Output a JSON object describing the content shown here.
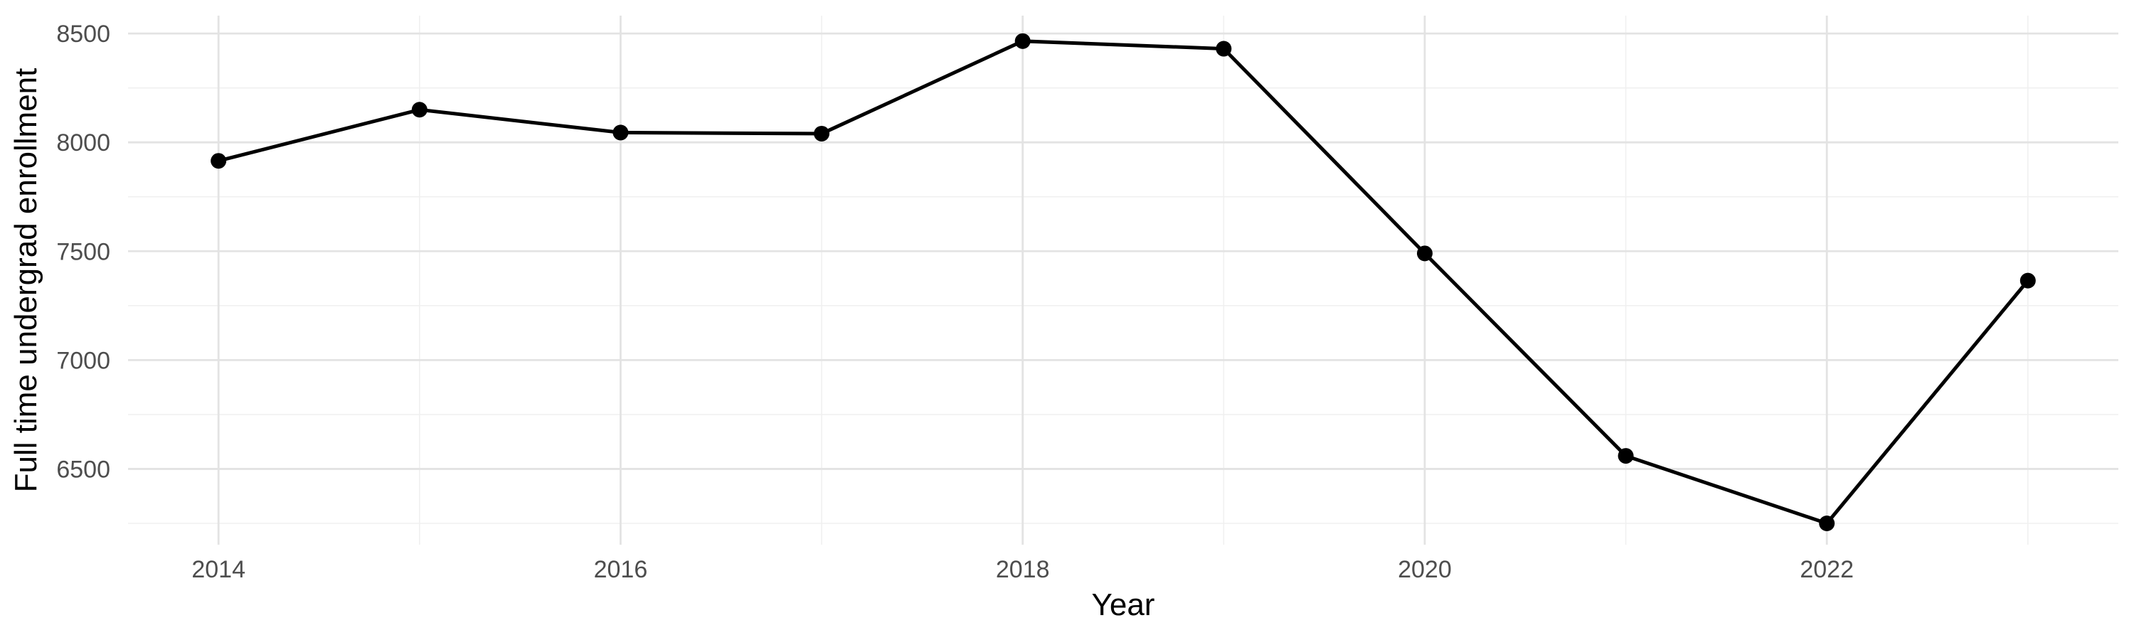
{
  "chart_data": {
    "type": "line",
    "title": "",
    "xlabel": "Year",
    "ylabel": "Full time undergrad enrollment",
    "series": [
      {
        "name": "Full time undergrad enrollment",
        "x": [
          2014,
          2015,
          2016,
          2017,
          2018,
          2019,
          2020,
          2021,
          2022,
          2023
        ],
        "values": [
          7915,
          8150,
          8045,
          8040,
          8465,
          8430,
          7490,
          6560,
          6250,
          7365
        ]
      }
    ],
    "xlim": [
      2013.55,
      2023.45
    ],
    "ylim": [
      6152,
      8582
    ],
    "x_major_ticks": [
      2014,
      2016,
      2018,
      2020,
      2022
    ],
    "x_tick_labels": [
      "2014",
      "2016",
      "2018",
      "2020",
      "2022"
    ],
    "x_minor_gridlines": [
      2015,
      2017,
      2019,
      2021,
      2023
    ],
    "y_major_ticks": [
      6500,
      7000,
      7500,
      8000,
      8500
    ],
    "y_tick_labels": [
      "6500",
      "7000",
      "7500",
      "8000",
      "8500"
    ],
    "y_minor_gridlines": [
      6250,
      6750,
      7250,
      7750,
      8250
    ],
    "grid": true,
    "legend_position": "none",
    "marker": "filled-circle",
    "colors": {
      "background": "#ffffff",
      "line": "#000000",
      "point": "#000000",
      "grid_major": "#e3e3e3",
      "grid_minor": "#f0f0f0",
      "tick_label": "#4d4d4d",
      "axis_title": "#000000"
    }
  }
}
